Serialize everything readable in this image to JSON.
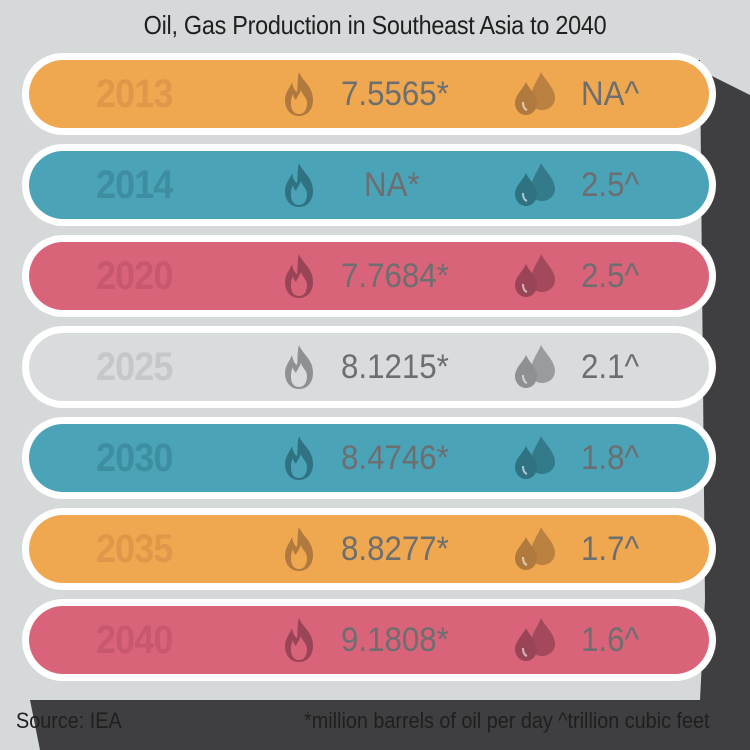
{
  "title": "Oil, Gas Production in Southeast Asia to 2040",
  "rows": [
    {
      "year": "2013",
      "oil": "7.5565*",
      "gas": "NA^",
      "bg": "#f0a850",
      "year_color": "#e0974a",
      "icon_color": "#b07a3e"
    },
    {
      "year": "2014",
      "oil": "NA*",
      "gas": "2.5^",
      "bg": "#4ba3b8",
      "year_color": "#3e8ea1",
      "icon_color": "#2f7383"
    },
    {
      "year": "2020",
      "oil": "7.7684*",
      "gas": "2.5^",
      "bg": "#d9647a",
      "year_color": "#c8586d",
      "icon_color": "#9a4457"
    },
    {
      "year": "2025",
      "oil": "8.1215*",
      "gas": "2.1^",
      "bg": "#d9dcdd",
      "year_color": "#c4c8c9",
      "icon_color": "#8d9192"
    },
    {
      "year": "2030",
      "oil": "8.4746*",
      "gas": "1.8^",
      "bg": "#4ba3b8",
      "year_color": "#3e8ea1",
      "icon_color": "#2f7383"
    },
    {
      "year": "2035",
      "oil": "8.8277*",
      "gas": "1.7^",
      "bg": "#f0a850",
      "year_color": "#e0974a",
      "icon_color": "#b07a3e"
    },
    {
      "year": "2040",
      "oil": "9.1808*",
      "gas": "1.6^",
      "bg": "#d9647a",
      "year_color": "#c8586d",
      "icon_color": "#9a4457"
    }
  ],
  "icons": {
    "oil": "flame-icon",
    "gas": "droplets-icon"
  },
  "footer": {
    "source": "Source: IEA",
    "note": "*million barrels of oil per day ^trillion cubic feet"
  }
}
